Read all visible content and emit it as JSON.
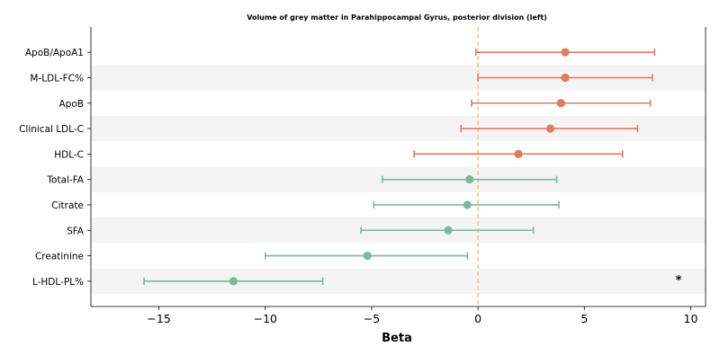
{
  "chart_data": {
    "type": "forest",
    "title": "Volume of grey matter in Parahippocampal Gyrus, posterior division (left)",
    "xlabel": "Beta",
    "xlim": [
      -18.2,
      10.7
    ],
    "xticks": [
      -15,
      -10,
      -5,
      0,
      5,
      10
    ],
    "xtick_labels": [
      "−15",
      "−10",
      "−5",
      "0",
      "5",
      "10"
    ],
    "reference_line": 0,
    "row_band_color": "#f4f4f4",
    "positive_color": "#e07b5c",
    "negative_color": "#7fb79a",
    "reference_color": "#f0c27b",
    "rows": [
      {
        "label": "ApoB/ApoA1",
        "beta": 4.1,
        "lower": -0.1,
        "upper": 8.3,
        "star": ""
      },
      {
        "label": "M-LDL-FC%",
        "beta": 4.1,
        "lower": 0.0,
        "upper": 8.2,
        "star": ""
      },
      {
        "label": "ApoB",
        "beta": 3.9,
        "lower": -0.3,
        "upper": 8.1,
        "star": ""
      },
      {
        "label": "Clinical LDL-C",
        "beta": 3.4,
        "lower": -0.8,
        "upper": 7.5,
        "star": ""
      },
      {
        "label": "HDL-C",
        "beta": 1.9,
        "lower": -3.0,
        "upper": 6.8,
        "star": ""
      },
      {
        "label": "Total-FA",
        "beta": -0.4,
        "lower": -4.5,
        "upper": 3.7,
        "star": ""
      },
      {
        "label": "Citrate",
        "beta": -0.5,
        "lower": -4.9,
        "upper": 3.8,
        "star": ""
      },
      {
        "label": "SFA",
        "beta": -1.4,
        "lower": -5.5,
        "upper": 2.6,
        "star": ""
      },
      {
        "label": "Creatinine",
        "beta": -5.2,
        "lower": -10.0,
        "upper": -0.5,
        "star": ""
      },
      {
        "label": "L-HDL-PL%",
        "beta": -11.5,
        "lower": -15.7,
        "upper": -7.3,
        "star": "*"
      }
    ]
  }
}
